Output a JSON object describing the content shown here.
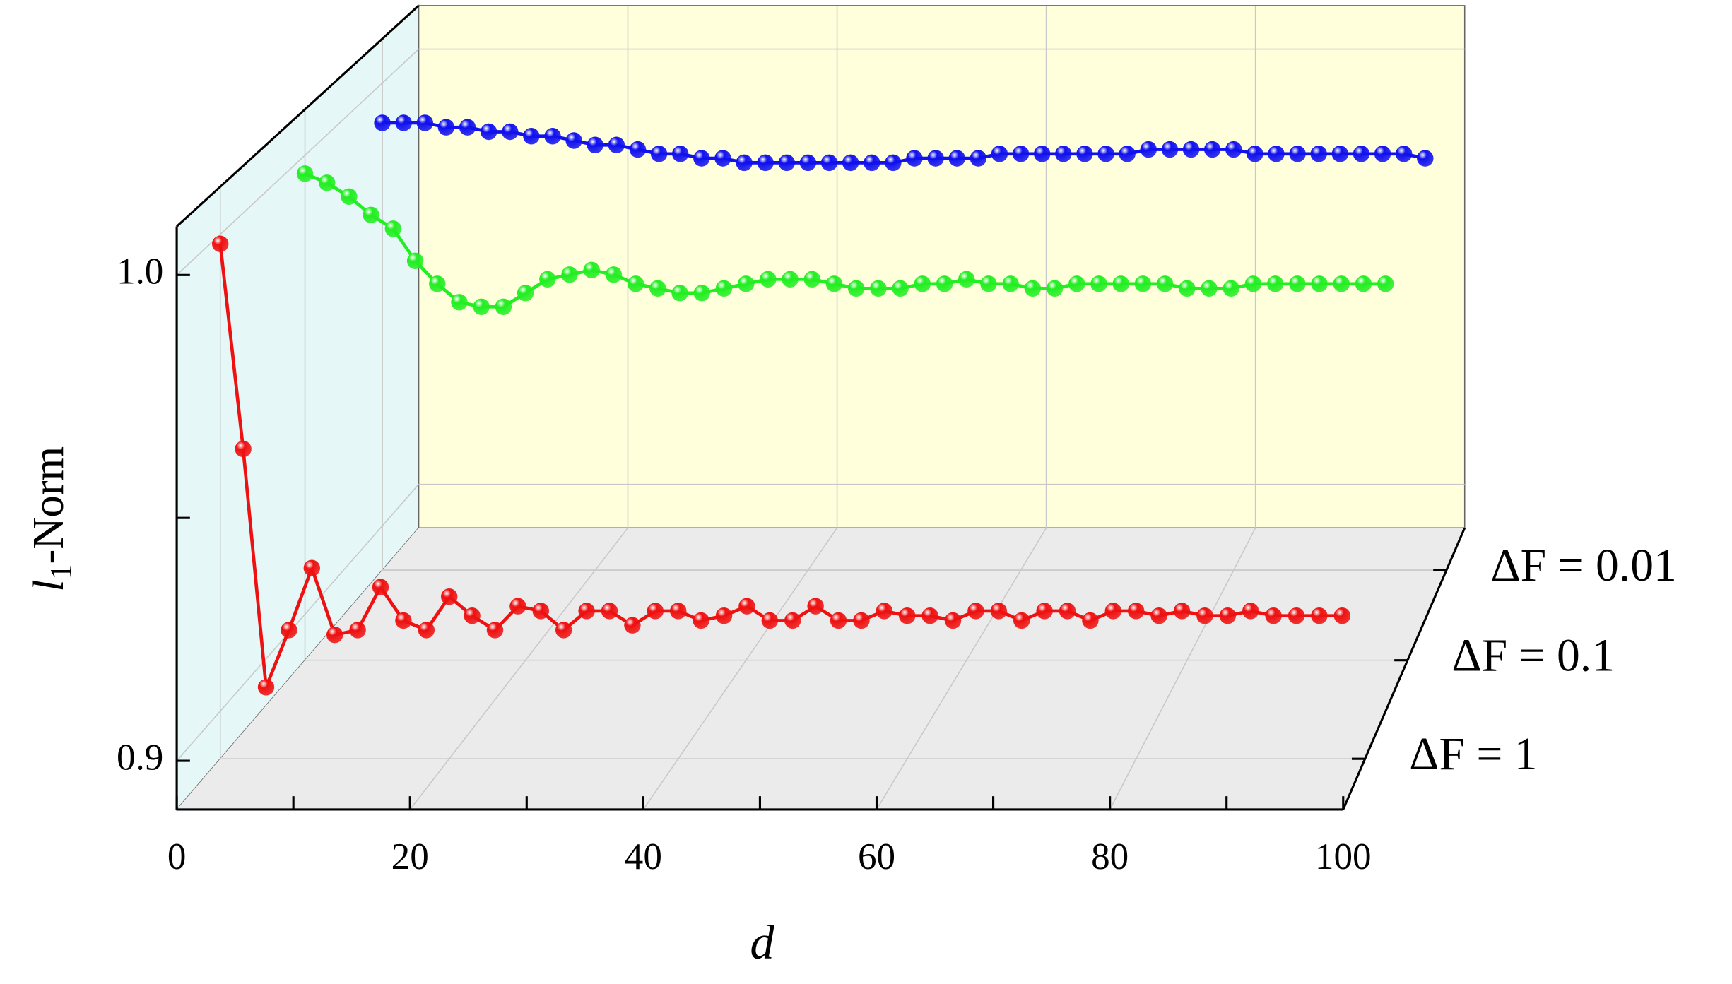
{
  "chart_data": {
    "type": "line3d",
    "xlabel": "d",
    "ylabel": {
      "base": "l",
      "subscript": "1",
      "suffix": "-Norm"
    },
    "x": [
      0,
      2,
      4,
      6,
      8,
      10,
      12,
      14,
      16,
      18,
      20,
      22,
      24,
      26,
      28,
      30,
      32,
      34,
      36,
      38,
      40,
      42,
      44,
      46,
      48,
      50,
      52,
      54,
      56,
      58,
      60,
      62,
      64,
      66,
      68,
      70,
      72,
      74,
      76,
      78,
      80,
      82,
      84,
      86,
      88,
      90,
      92,
      94,
      96,
      98
    ],
    "xlim": [
      0,
      100
    ],
    "xticks": [
      0,
      20,
      40,
      60,
      80,
      100
    ],
    "minor_xticks": [
      10,
      30,
      50,
      70,
      90
    ],
    "ylim": [
      0.89,
      1.01
    ],
    "yticks": [
      0.9,
      {
        "value": 1,
        "label": "1.0"
      }
    ],
    "minor_yticks": [
      0.95
    ],
    "grid": true,
    "series": [
      {
        "name": "ΔF = 1",
        "color": "#ee1111",
        "values": [
          0.998,
          0.955,
          0.905,
          0.917,
          0.93,
          0.916,
          0.917,
          0.926,
          0.919,
          0.917,
          0.924,
          0.92,
          0.917,
          0.922,
          0.921,
          0.917,
          0.921,
          0.921,
          0.918,
          0.921,
          0.921,
          0.919,
          0.92,
          0.922,
          0.919,
          0.919,
          0.922,
          0.919,
          0.919,
          0.921,
          0.92,
          0.92,
          0.919,
          0.921,
          0.921,
          0.919,
          0.921,
          0.921,
          0.919,
          0.921,
          0.921,
          0.92,
          0.921,
          0.92,
          0.92,
          0.921,
          0.92,
          0.92,
          0.92,
          0.92
        ]
      },
      {
        "name": "ΔF = 0.1",
        "color": "#22ee22",
        "values": [
          0.996,
          0.994,
          0.991,
          0.987,
          0.984,
          0.977,
          0.972,
          0.968,
          0.967,
          0.967,
          0.97,
          0.973,
          0.974,
          0.975,
          0.974,
          0.972,
          0.971,
          0.97,
          0.97,
          0.971,
          0.972,
          0.973,
          0.973,
          0.973,
          0.972,
          0.971,
          0.971,
          0.971,
          0.972,
          0.972,
          0.973,
          0.972,
          0.972,
          0.971,
          0.971,
          0.972,
          0.972,
          0.972,
          0.972,
          0.972,
          0.971,
          0.971,
          0.971,
          0.972,
          0.972,
          0.972,
          0.972,
          0.972,
          0.972,
          0.972
        ]
      },
      {
        "name": "ΔF = 0.01",
        "color": "#1111ee",
        "values": [
          0.991,
          0.991,
          0.991,
          0.99,
          0.99,
          0.989,
          0.989,
          0.988,
          0.988,
          0.987,
          0.986,
          0.986,
          0.985,
          0.984,
          0.984,
          0.983,
          0.983,
          0.982,
          0.982,
          0.982,
          0.982,
          0.982,
          0.982,
          0.982,
          0.982,
          0.983,
          0.983,
          0.983,
          0.983,
          0.984,
          0.984,
          0.984,
          0.984,
          0.984,
          0.984,
          0.984,
          0.985,
          0.985,
          0.985,
          0.985,
          0.985,
          0.984,
          0.984,
          0.984,
          0.984,
          0.984,
          0.984,
          0.984,
          0.984,
          0.983
        ]
      }
    ]
  }
}
